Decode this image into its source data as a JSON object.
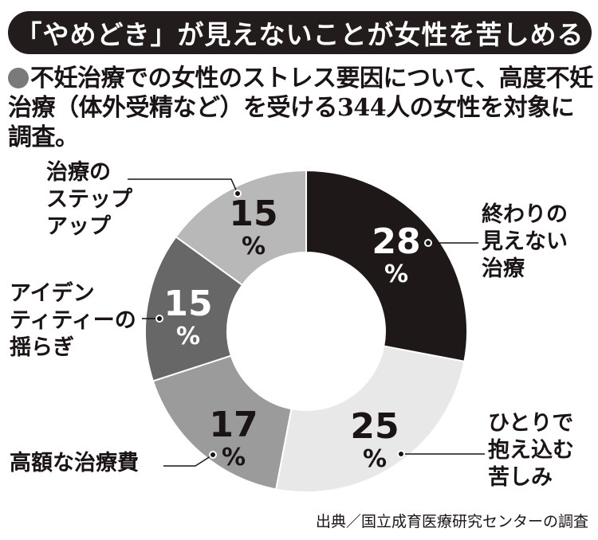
{
  "chart_data": {
    "type": "pie",
    "title": "「やめどき」が見えないことが女性を苦しめる",
    "subtitle": "不妊治療での女性のストレス要因について、高度不妊治療（体外受精など）を受ける344人の女性を対象に調査。",
    "source": "出典／国立成育医療研究センターの調査",
    "unit": "%",
    "slices": [
      {
        "label": "終わりの\n見えない\n治療",
        "value": 28,
        "color": "#1f1818",
        "text_color": "#ffffff"
      },
      {
        "label": "ひとりで\n抱え込む\n苦しみ",
        "value": 25,
        "color": "#e8e8e8",
        "text_color": "#1a1414"
      },
      {
        "label": "高額な治療費",
        "value": 17,
        "color": "#9b9b9b",
        "text_color": "#1a1414"
      },
      {
        "label": "アイデン\nティティーの\n揺らぎ",
        "value": 15,
        "color": "#676767",
        "text_color": "#ffffff"
      },
      {
        "label": "治療の\nステップ\nアップ",
        "value": 15,
        "color": "#b8b8b8",
        "text_color": "#1a1414"
      }
    ]
  }
}
